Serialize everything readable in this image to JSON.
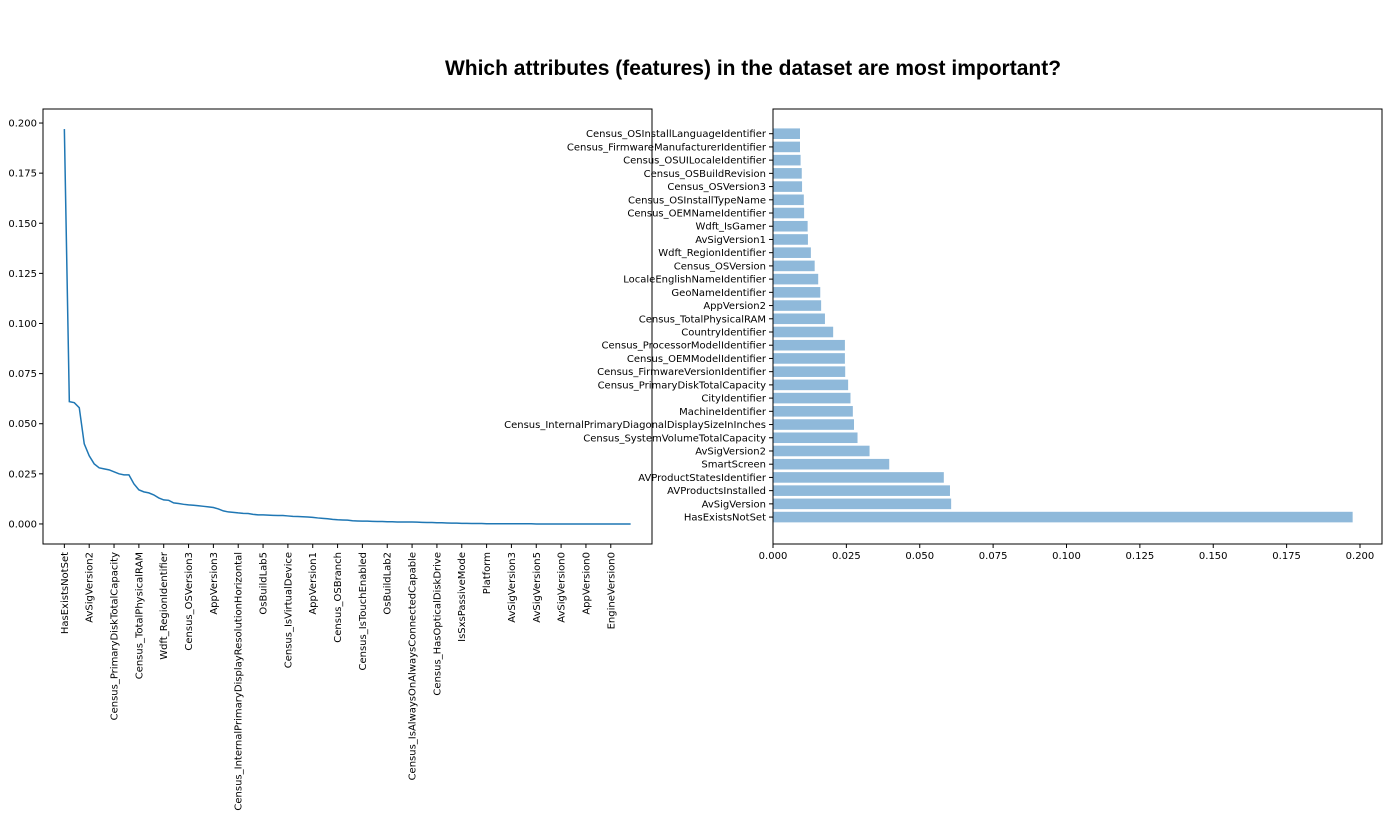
{
  "title": "Which attributes (features) in the dataset are most important?",
  "colors": {
    "line": "#1f77b4",
    "bar": "#8fb9da",
    "axis": "#000000"
  },
  "chart_data": [
    {
      "type": "line",
      "ylim": [
        0,
        0.2
      ],
      "yticks": [
        0.0,
        0.025,
        0.05,
        0.075,
        0.1,
        0.125,
        0.15,
        0.175,
        0.2
      ],
      "ytick_labels": [
        "0.000",
        "0.025",
        "0.050",
        "0.075",
        "0.100",
        "0.125",
        "0.150",
        "0.175",
        "0.200"
      ],
      "x_count": 115,
      "xtick_positions": [
        0,
        5,
        10,
        15,
        20,
        25,
        30,
        35,
        40,
        45,
        50,
        55,
        60,
        65,
        70,
        75,
        80,
        85,
        90,
        95,
        100,
        105,
        110
      ],
      "xtick_labels": [
        "HasExistsNotSet",
        "AvSigVersion2",
        "Census_PrimaryDiskTotalCapacity",
        "Census_TotalPhysicalRAM",
        "Wdft_RegionIdentifier",
        "Census_OSVersion3",
        "AppVersion3",
        "Census_InternalPrimaryDisplayResolutionHorizontal",
        "OsBuildLab5",
        "Census_IsVirtualDevice",
        "AppVersion1",
        "Census_OSBranch",
        "Census_IsTouchEnabled",
        "OsBuildLab2",
        "Census_IsAlwaysOnAlwaysConnectedCapable",
        "Census_HasOpticalDiskDrive",
        "IsSxsPassiveMode",
        "Platform",
        "AvSigVersion3",
        "AvSigVersion5",
        "AvSigVersion0",
        "AppVersion0",
        "EngineVersion0"
      ],
      "points": [
        [
          0,
          0.197
        ],
        [
          1,
          0.061
        ],
        [
          2,
          0.0605
        ],
        [
          3,
          0.058
        ],
        [
          4,
          0.04
        ],
        [
          5,
          0.034
        ],
        [
          6,
          0.03
        ],
        [
          7,
          0.028
        ],
        [
          8,
          0.0275
        ],
        [
          9,
          0.027
        ],
        [
          10,
          0.026
        ],
        [
          11,
          0.025
        ],
        [
          12,
          0.0245
        ],
        [
          13,
          0.0245
        ],
        [
          14,
          0.02
        ],
        [
          15,
          0.017
        ],
        [
          16,
          0.016
        ],
        [
          17,
          0.0155
        ],
        [
          18,
          0.0145
        ],
        [
          19,
          0.013
        ],
        [
          20,
          0.012
        ],
        [
          21,
          0.0118
        ],
        [
          22,
          0.0105
        ],
        [
          23,
          0.0102
        ],
        [
          24,
          0.0098
        ],
        [
          25,
          0.0095
        ],
        [
          26,
          0.0093
        ],
        [
          27,
          0.0091
        ],
        [
          28,
          0.0088
        ],
        [
          29,
          0.0085
        ],
        [
          30,
          0.0082
        ],
        [
          31,
          0.0075
        ],
        [
          32,
          0.0065
        ],
        [
          33,
          0.006
        ],
        [
          34,
          0.0058
        ],
        [
          35,
          0.0055
        ],
        [
          36,
          0.0053
        ],
        [
          37,
          0.0052
        ],
        [
          38,
          0.0048
        ],
        [
          39,
          0.0045
        ],
        [
          40,
          0.0045
        ],
        [
          41,
          0.0044
        ],
        [
          42,
          0.0043
        ],
        [
          43,
          0.0042
        ],
        [
          44,
          0.0042
        ],
        [
          45,
          0.004
        ],
        [
          46,
          0.0038
        ],
        [
          47,
          0.0037
        ],
        [
          48,
          0.0036
        ],
        [
          49,
          0.0035
        ],
        [
          50,
          0.0033
        ],
        [
          51,
          0.003
        ],
        [
          52,
          0.0028
        ],
        [
          53,
          0.0026
        ],
        [
          54,
          0.0023
        ],
        [
          55,
          0.0021
        ],
        [
          56,
          0.002
        ],
        [
          57,
          0.0019
        ],
        [
          58,
          0.0016
        ],
        [
          59,
          0.0015
        ],
        [
          60,
          0.0014
        ],
        [
          61,
          0.0014
        ],
        [
          62,
          0.0013
        ],
        [
          63,
          0.0012
        ],
        [
          64,
          0.0012
        ],
        [
          65,
          0.0011
        ],
        [
          66,
          0.0011
        ],
        [
          67,
          0.001
        ],
        [
          68,
          0.001
        ],
        [
          69,
          0.001
        ],
        [
          70,
          0.001
        ],
        [
          71,
          0.0009
        ],
        [
          72,
          0.0008
        ],
        [
          73,
          0.0007
        ],
        [
          74,
          0.0007
        ],
        [
          75,
          0.0006
        ],
        [
          76,
          0.0006
        ],
        [
          77,
          0.0005
        ],
        [
          78,
          0.0004
        ],
        [
          79,
          0.0004
        ],
        [
          80,
          0.0003
        ],
        [
          81,
          0.0003
        ],
        [
          82,
          0.0002
        ],
        [
          83,
          0.0002
        ],
        [
          84,
          0.0002
        ],
        [
          85,
          0.0001
        ],
        [
          86,
          0.0001
        ],
        [
          87,
          0.0001
        ],
        [
          88,
          0.0001
        ],
        [
          89,
          0.0001
        ],
        [
          90,
          0.0001
        ],
        [
          91,
          0.0001
        ],
        [
          92,
          0.0001
        ],
        [
          93,
          0.0001
        ],
        [
          94,
          0.0001
        ],
        [
          95,
          0.0
        ],
        [
          96,
          0.0
        ],
        [
          97,
          0.0
        ],
        [
          98,
          0.0
        ],
        [
          99,
          0.0
        ],
        [
          100,
          0.0
        ],
        [
          101,
          0.0
        ],
        [
          102,
          0.0
        ],
        [
          103,
          0.0
        ],
        [
          104,
          0.0
        ],
        [
          105,
          0.0
        ],
        [
          106,
          0.0
        ],
        [
          107,
          0.0
        ],
        [
          108,
          0.0
        ],
        [
          109,
          0.0
        ],
        [
          110,
          0.0
        ],
        [
          111,
          0.0
        ],
        [
          112,
          0.0
        ],
        [
          113,
          0.0
        ],
        [
          114,
          0.0
        ]
      ]
    },
    {
      "type": "bar",
      "orientation": "horizontal",
      "xlim": [
        0,
        0.2
      ],
      "xticks": [
        0.0,
        0.025,
        0.05,
        0.075,
        0.1,
        0.125,
        0.15,
        0.175,
        0.2
      ],
      "xtick_labels": [
        "0.000",
        "0.025",
        "0.050",
        "0.075",
        "0.100",
        "0.125",
        "0.150",
        "0.175",
        "0.200"
      ],
      "categories": [
        "Census_OSInstallLanguageIdentifier",
        "Census_FirmwareManufacturerIdentifier",
        "Census_OSUILocaleIdentifier",
        "Census_OSBuildRevision",
        "Census_OSVersion3",
        "Census_OSInstallTypeName",
        "Census_OEMNameIdentifier",
        "Wdft_IsGamer",
        "AvSigVersion1",
        "Wdft_RegionIdentifier",
        "Census_OSVersion",
        "LocaleEnglishNameIdentifier",
        "GeoNameIdentifier",
        "AppVersion2",
        "Census_TotalPhysicalRAM",
        "CountryIdentifier",
        "Census_ProcessorModelIdentifier",
        "Census_OEMModelIdentifier",
        "Census_FirmwareVersionIdentifier",
        "Census_PrimaryDiskTotalCapacity",
        "CityIdentifier",
        "MachineIdentifier",
        "Census_InternalPrimaryDiagonalDisplaySizeInInches",
        "Census_SystemVolumeTotalCapacity",
        "AvSigVersion2",
        "SmartScreen",
        "AVProductStatesIdentifier",
        "AVProductsInstalled",
        "AvSigVersion",
        "HasExistsNotSet"
      ],
      "values": [
        0.0092,
        0.0092,
        0.0094,
        0.0098,
        0.0099,
        0.0105,
        0.0106,
        0.0118,
        0.0119,
        0.0129,
        0.0142,
        0.0154,
        0.0161,
        0.0164,
        0.0177,
        0.0205,
        0.0245,
        0.0245,
        0.0246,
        0.0256,
        0.0264,
        0.0272,
        0.0276,
        0.0288,
        0.0329,
        0.0396,
        0.0582,
        0.0603,
        0.0607,
        0.1975
      ]
    }
  ]
}
